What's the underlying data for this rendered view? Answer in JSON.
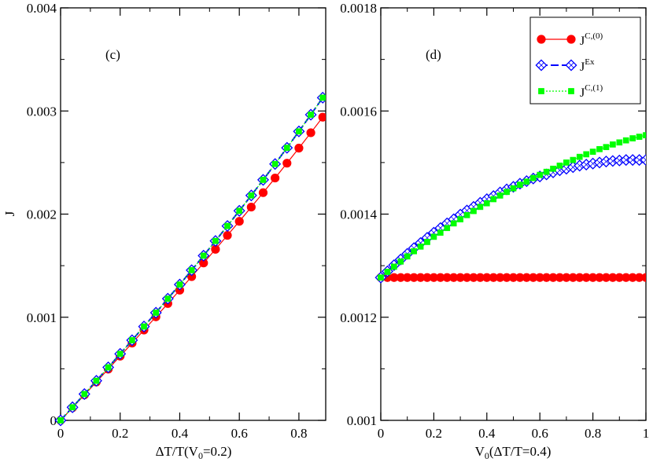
{
  "chart_data": [
    {
      "type": "line",
      "panel_label": "(c)",
      "xlabel_main": "ΔT/T(V",
      "xlabel_sub": "0",
      "xlabel_rest": "=0.2)",
      "ylabel": "J",
      "xlim": [
        0,
        0.89
      ],
      "ylim": [
        0,
        0.004
      ],
      "xticks": [
        0,
        0.2,
        0.4,
        0.6,
        0.8
      ],
      "xtick_labels": [
        "0",
        "0.2",
        "0.4",
        "0.6",
        "0.8"
      ],
      "yticks": [
        0,
        0.001,
        0.002,
        0.003,
        0.004
      ],
      "ytick_labels": [
        "0",
        "0.001",
        "0.002",
        "0.003",
        "0.004"
      ],
      "x": [
        0.0,
        0.04,
        0.08,
        0.12,
        0.16,
        0.2,
        0.24,
        0.28,
        0.32,
        0.36,
        0.4,
        0.44,
        0.48,
        0.52,
        0.56,
        0.6,
        0.64,
        0.68,
        0.72,
        0.76,
        0.8,
        0.84,
        0.88
      ],
      "series": [
        {
          "key": "c0",
          "color": "#ff0000",
          "marker": "circle",
          "values": [
            0.0,
            0.000123,
            0.000247,
            0.000372,
            0.000497,
            0.000623,
            0.000749,
            0.000876,
            0.001004,
            0.001133,
            0.001263,
            0.001394,
            0.001526,
            0.001659,
            0.001794,
            0.00193,
            0.002068,
            0.002208,
            0.00235,
            0.002494,
            0.00264,
            0.002789,
            0.00294
          ]
        },
        {
          "key": "ex",
          "color": "#0000ff",
          "marker": "diamond",
          "values": [
            0.0,
            0.000127,
            0.000255,
            0.000384,
            0.000514,
            0.000645,
            0.000777,
            0.00091,
            0.001044,
            0.00118,
            0.001317,
            0.001456,
            0.001597,
            0.00174,
            0.001885,
            0.002032,
            0.002181,
            0.002332,
            0.002486,
            0.002643,
            0.002802,
            0.002964,
            0.003129
          ]
        },
        {
          "key": "c1",
          "color": "#00ff00",
          "marker": "square",
          "values": [
            0.0,
            0.000127,
            0.000255,
            0.000384,
            0.000514,
            0.000645,
            0.000777,
            0.00091,
            0.001044,
            0.00118,
            0.001317,
            0.001456,
            0.001597,
            0.00174,
            0.001885,
            0.002032,
            0.002181,
            0.002332,
            0.002486,
            0.002643,
            0.002802,
            0.002964,
            0.003129
          ]
        }
      ]
    },
    {
      "type": "line",
      "panel_label": "(d)",
      "xlabel_main": "V",
      "xlabel_sub": "0",
      "xlabel_rest": "(ΔT/T=0.4)",
      "ylabel": "",
      "xlim": [
        0,
        1
      ],
      "ylim": [
        0.001,
        0.0018
      ],
      "xticks": [
        0,
        0.2,
        0.4,
        0.6,
        0.8,
        1
      ],
      "xtick_labels": [
        "0",
        "0.2",
        "0.4",
        "0.6",
        "0.8",
        "1"
      ],
      "yticks": [
        0.001,
        0.0012,
        0.0014,
        0.0016,
        0.0018
      ],
      "ytick_labels": [
        "0.001",
        "0.0012",
        "0.0014",
        "0.0016",
        "0.0018"
      ],
      "legend_position": "top-right",
      "legend": [
        {
          "key": "c0",
          "base": "J",
          "sup": "C,(0)"
        },
        {
          "key": "ex",
          "base": "J",
          "sup": "Ex"
        },
        {
          "key": "c1",
          "base": "J",
          "sup": "C,(1)"
        }
      ],
      "x": [
        0.0,
        0.025,
        0.05,
        0.075,
        0.1,
        0.125,
        0.15,
        0.175,
        0.2,
        0.225,
        0.25,
        0.275,
        0.3,
        0.325,
        0.35,
        0.375,
        0.4,
        0.425,
        0.45,
        0.475,
        0.5,
        0.525,
        0.55,
        0.575,
        0.6,
        0.625,
        0.65,
        0.675,
        0.7,
        0.725,
        0.75,
        0.775,
        0.8,
        0.825,
        0.85,
        0.875,
        0.9,
        0.925,
        0.95,
        0.975,
        1.0
      ],
      "series": [
        {
          "key": "c0",
          "color": "#ff0000",
          "marker": "circle",
          "values": [
            0.001277,
            0.001277,
            0.001277,
            0.001277,
            0.001277,
            0.001277,
            0.001277,
            0.001277,
            0.001277,
            0.001277,
            0.001277,
            0.001277,
            0.001277,
            0.001277,
            0.001277,
            0.001277,
            0.001277,
            0.001277,
            0.001277,
            0.001277,
            0.001277,
            0.001277,
            0.001277,
            0.001277,
            0.001277,
            0.001277,
            0.001277,
            0.001277,
            0.001277,
            0.001277,
            0.001277,
            0.001277,
            0.001277,
            0.001277,
            0.001277,
            0.001277,
            0.001277,
            0.001277,
            0.001277,
            0.001277,
            0.001277
          ]
        },
        {
          "key": "ex",
          "color": "#0000ff",
          "marker": "diamond",
          "values": [
            0.001277,
            0.001289,
            0.001301,
            0.001312,
            0.001323,
            0.001334,
            0.001344,
            0.001354,
            0.001364,
            0.001373,
            0.001382,
            0.00139,
            0.001399,
            0.001407,
            0.001414,
            0.001422,
            0.001429,
            0.001435,
            0.001442,
            0.001448,
            0.001453,
            0.001459,
            0.001464,
            0.001469,
            0.001473,
            0.001477,
            0.001481,
            0.001485,
            0.001488,
            0.001491,
            0.001494,
            0.001496,
            0.001498,
            0.0015,
            0.001502,
            0.001503,
            0.001504,
            0.001505,
            0.001505,
            0.001505,
            0.001505
          ]
        },
        {
          "key": "c1",
          "color": "#00ff00",
          "marker": "square",
          "values": [
            0.001277,
            0.001288,
            0.001298,
            0.001308,
            0.001318,
            0.001328,
            0.001337,
            0.001346,
            0.001356,
            0.001364,
            0.001373,
            0.001382,
            0.00139,
            0.001398,
            0.001406,
            0.001414,
            0.001421,
            0.001429,
            0.001436,
            0.001443,
            0.00145,
            0.001457,
            0.001463,
            0.00147,
            0.001476,
            0.001482,
            0.001488,
            0.001494,
            0.0015,
            0.001505,
            0.001511,
            0.001516,
            0.001521,
            0.001526,
            0.00153,
            0.001535,
            0.001539,
            0.001543,
            0.001547,
            0.00155,
            0.001553
          ]
        }
      ]
    }
  ]
}
